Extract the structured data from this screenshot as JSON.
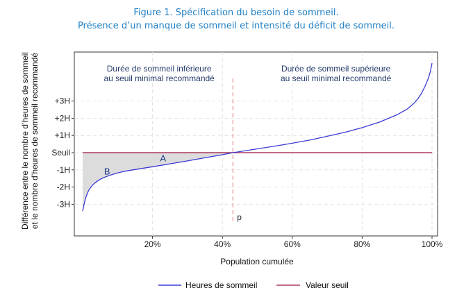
{
  "chart_data": {
    "type": "area",
    "title": "Figure 1. Spécification du besoin de sommeil.",
    "subtitle": "Présence d’un manque de sommeil et intensité du déficit de sommeil.",
    "xlabel": "Population cumulée",
    "ylabel_line1": "Différence entre le nombre d’heures de sommeil",
    "ylabel_line2": "et le nombre d’heures de sommeil recommandé",
    "xlim": [
      0,
      100
    ],
    "ylim": [
      -4.7,
      2.9
    ],
    "x_ticks": [
      {
        "value": 20,
        "label": "20%"
      },
      {
        "value": 40,
        "label": "40%"
      },
      {
        "value": 60,
        "label": "60%"
      },
      {
        "value": 80,
        "label": "80%"
      },
      {
        "value": 100,
        "label": "100%"
      }
    ],
    "y_ticks": [
      {
        "value": 1,
        "label": "+3H"
      },
      {
        "value": 0,
        "label": "+2H"
      },
      {
        "value": -1,
        "label": "+1H"
      },
      {
        "value": -2,
        "label": "Seuil"
      },
      {
        "value": -3,
        "label": "-1H"
      },
      {
        "value": -4,
        "label": "-2H"
      },
      {
        "value": -5,
        "label": "-3H"
      }
    ],
    "grid": true,
    "threshold_x": 43,
    "threshold_label": "p",
    "region_left": [
      "Durée de sommeil inférieure",
      "au seuil minimal recommandé"
    ],
    "region_right": [
      "Durée de sommeil supérieure",
      "au seuil minimal recommandé"
    ],
    "area_labels": [
      {
        "text": "A",
        "x": 23,
        "y": -2.35
      },
      {
        "text": "B",
        "x": 7,
        "y": -3.1
      }
    ],
    "series": [
      {
        "name": "Heures de sommeil",
        "color": "#3a3ad6",
        "x": [
          0,
          0.3,
          0.6,
          1,
          1.5,
          2,
          3,
          4,
          5,
          6,
          8,
          10,
          12,
          15,
          20,
          25,
          30,
          35,
          40,
          43,
          45,
          50,
          55,
          60,
          65,
          70,
          75,
          80,
          85,
          90,
          93,
          95,
          96,
          97,
          98,
          99,
          99.5,
          100
        ],
        "y": [
          -5.4,
          -5.1,
          -4.85,
          -4.55,
          -4.3,
          -4.1,
          -3.85,
          -3.68,
          -3.55,
          -3.45,
          -3.3,
          -3.18,
          -3.08,
          -2.98,
          -2.82,
          -2.65,
          -2.48,
          -2.3,
          -2.12,
          -2.0,
          -1.94,
          -1.78,
          -1.62,
          -1.45,
          -1.27,
          -1.05,
          -0.82,
          -0.55,
          -0.22,
          0.2,
          0.55,
          0.9,
          1.15,
          1.45,
          1.85,
          2.35,
          2.7,
          3.2
        ]
      },
      {
        "name": "Valeur seuil",
        "color": "#a8385a",
        "x": [
          0,
          100
        ],
        "y": [
          -2,
          -2
        ]
      }
    ],
    "area_color": "#dcdcdc"
  }
}
